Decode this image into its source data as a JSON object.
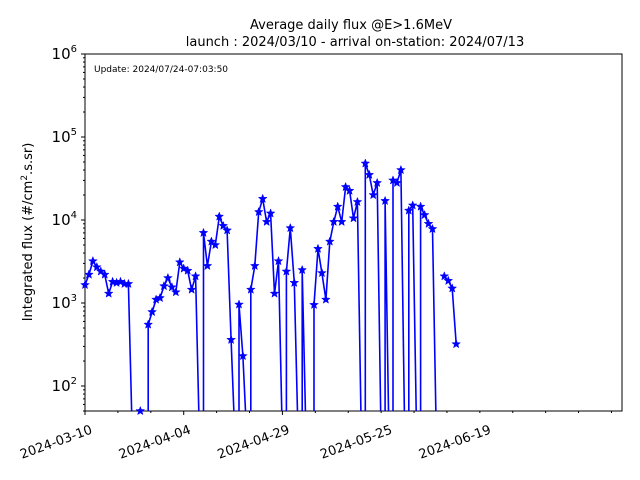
{
  "chart_data": {
    "type": "line",
    "title": "Average daily flux @E>1.6MeV",
    "subtitle": "launch : 2024/03/10 - arrival on-station: 2024/07/13",
    "annotation": "Update: 2024/07/24-07:03:50",
    "ylabel_parts": [
      "Integrated flux (#/cm",
      "2",
      ".s.sr)"
    ],
    "xlabel": "",
    "y_scale": "log",
    "ylim": [
      50,
      1000000
    ],
    "y_ticks": [
      {
        "value": 100,
        "base": "10",
        "exp": "2"
      },
      {
        "value": 1000,
        "base": "10",
        "exp": "3"
      },
      {
        "value": 10000,
        "base": "10",
        "exp": "4"
      },
      {
        "value": 100000,
        "base": "10",
        "exp": "5"
      },
      {
        "value": 1000000,
        "base": "10",
        "exp": "6"
      }
    ],
    "xlim": [
      "2024-03-10",
      "2024-07-24"
    ],
    "x_ticks": [
      "2024-03-10",
      "2024-04-04",
      "2024-04-29",
      "2024-05-25",
      "2024-06-19"
    ],
    "grid": false,
    "legend": "none",
    "series": [
      {
        "color": "#0000ff",
        "marker": "star",
        "x": [
          "2024-03-10",
          "2024-03-11",
          "2024-03-12",
          "2024-03-13",
          "2024-03-14",
          "2024-03-15",
          "2024-03-16",
          "2024-03-17",
          "2024-03-18",
          "2024-03-19",
          "2024-03-20",
          "2024-03-21",
          "2024-03-22",
          "2024-03-23",
          "2024-03-24",
          "2024-03-25",
          "2024-03-26",
          "2024-03-27",
          "2024-03-28",
          "2024-03-29",
          "2024-03-30",
          "2024-03-31",
          "2024-04-01",
          "2024-04-02",
          "2024-04-03",
          "2024-04-04",
          "2024-04-05",
          "2024-04-06",
          "2024-04-07",
          "2024-04-08",
          "2024-04-09",
          "2024-04-10",
          "2024-04-11",
          "2024-04-12",
          "2024-04-13",
          "2024-04-14",
          "2024-04-15",
          "2024-04-16",
          "2024-04-17",
          "2024-04-18",
          "2024-04-19",
          "2024-04-20",
          "2024-04-21",
          "2024-04-22",
          "2024-04-23",
          "2024-04-24",
          "2024-04-25",
          "2024-04-26",
          "2024-04-27",
          "2024-04-28",
          "2024-04-29",
          "2024-04-30",
          "2024-05-01",
          "2024-05-02",
          "2024-05-03",
          "2024-05-04",
          "2024-05-05",
          "2024-05-06",
          "2024-05-07",
          "2024-05-08",
          "2024-05-09",
          "2024-05-10",
          "2024-05-11",
          "2024-05-12",
          "2024-05-13",
          "2024-05-14",
          "2024-05-15",
          "2024-05-16",
          "2024-05-17",
          "2024-05-18",
          "2024-05-19",
          "2024-05-20",
          "2024-05-21",
          "2024-05-22",
          "2024-05-23",
          "2024-05-24",
          "2024-05-25",
          "2024-05-26",
          "2024-05-27",
          "2024-05-28",
          "2024-05-29",
          "2024-05-30",
          "2024-05-31",
          "2024-06-01",
          "2024-06-02",
          "2024-06-03",
          "2024-06-04",
          "2024-06-05",
          "2024-06-06",
          "2024-06-07"
        ],
        "y": [
          1650,
          2200,
          3200,
          2700,
          2400,
          2200,
          1300,
          1800,
          1750,
          1800,
          1700,
          1700,
          null,
          null,
          50,
          null,
          550,
          780,
          1100,
          1150,
          1600,
          2000,
          1550,
          1350,
          3100,
          2600,
          2450,
          1450,
          2100,
          null,
          7000,
          2800,
          5500,
          5000,
          11000,
          8500,
          7500,
          360,
          null,
          960,
          230,
          null,
          1450,
          2800,
          12500,
          18000,
          9500,
          12000,
          1300,
          3200,
          null,
          2400,
          8000,
          1750,
          null,
          2500,
          null,
          null,
          950,
          4500,
          2300,
          1100,
          5500,
          9500,
          14500,
          9500,
          25000,
          22500,
          10500,
          16500,
          null,
          48000,
          35000,
          20000,
          28000,
          null,
          17000,
          null,
          30000,
          28000,
          40000,
          null,
          13000,
          15000,
          null,
          14500,
          11500,
          9000,
          7800,
          null
        ],
        "markers_only_points": [],
        "tail": {
          "x": [
            "2024-06-09",
            "2024-06-10",
            "2024-06-11",
            "2024-06-12"
          ],
          "y": [
            2100,
            1850,
            1500,
            320
          ]
        }
      }
    ]
  }
}
